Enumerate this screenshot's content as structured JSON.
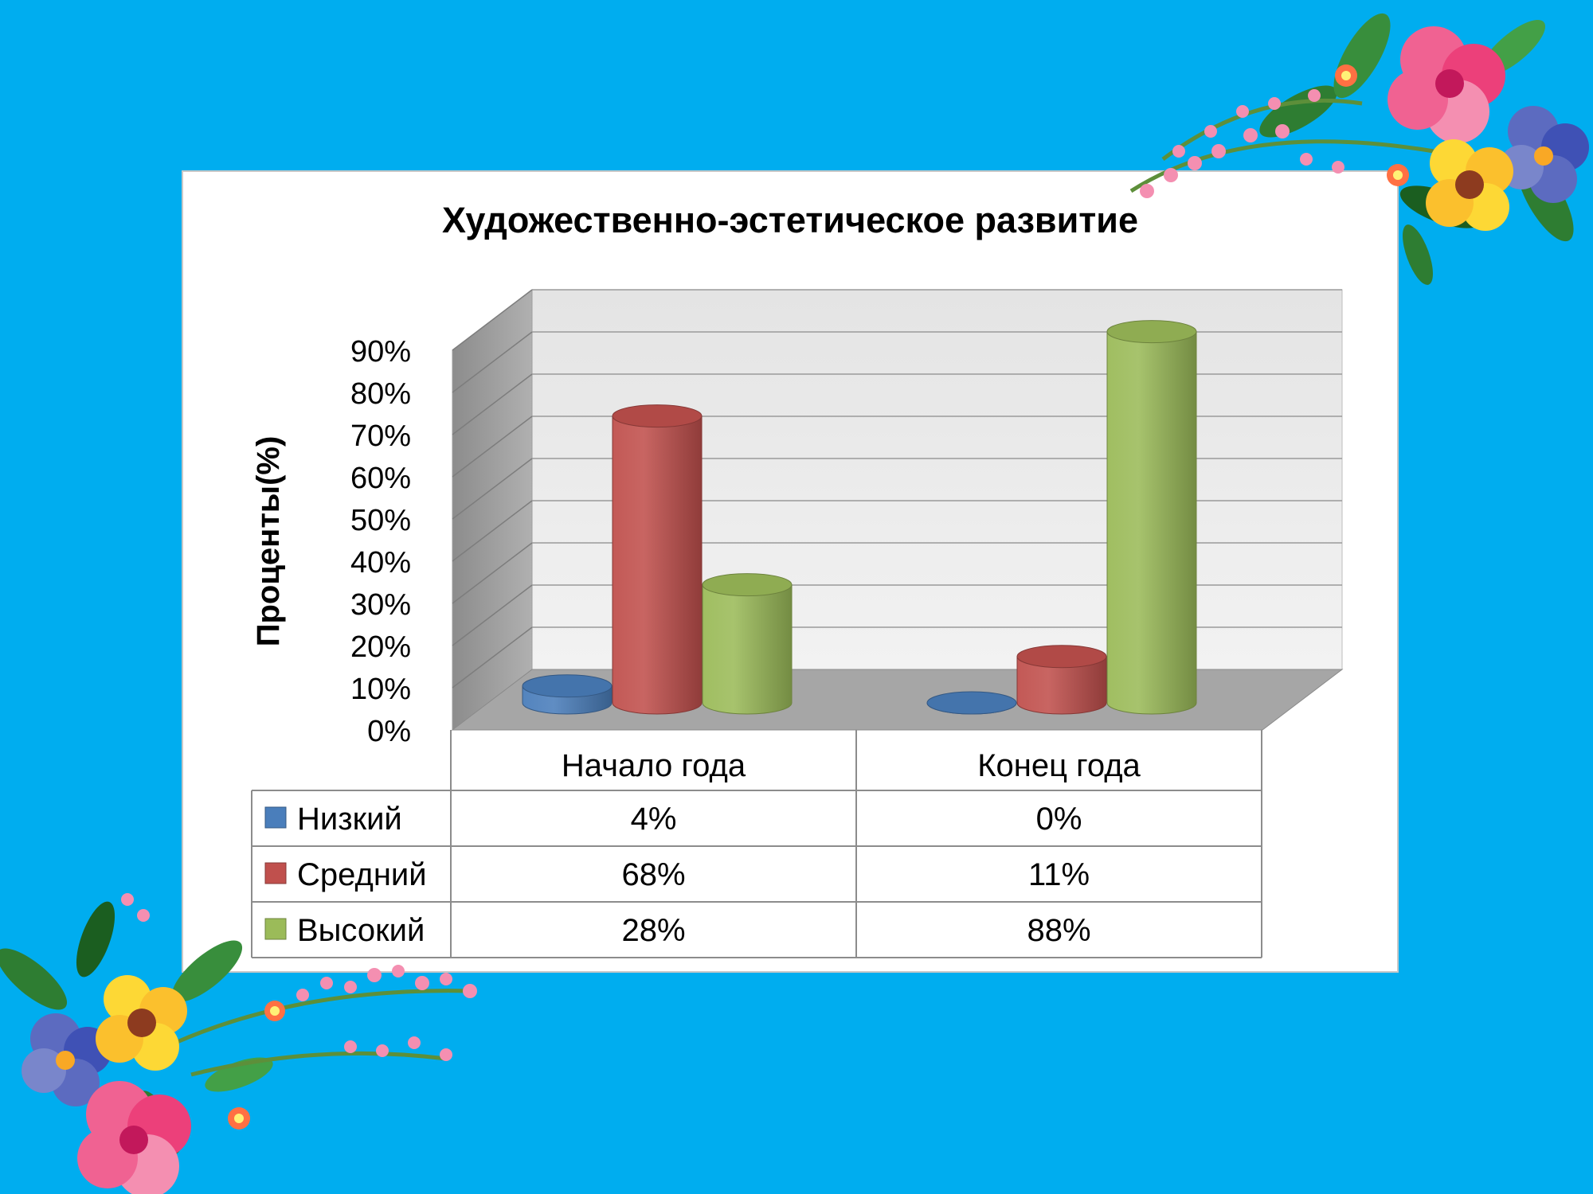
{
  "colors": {
    "background": "#00adef",
    "low": "#4a7ebb",
    "medium": "#c0504d",
    "high": "#9bbb59"
  },
  "decorations": [
    "flower-garland-top-right",
    "flower-garland-bottom-left"
  ],
  "chart_data": {
    "type": "bar",
    "style": "3d-cylinder",
    "title": "Художественно-эстетическое развитие",
    "ylabel": "Проценты(%)",
    "xlabel": "",
    "ylim": [
      0,
      0.9
    ],
    "yticks": [
      "0%",
      "10%",
      "20%",
      "30%",
      "40%",
      "50%",
      "60%",
      "70%",
      "80%",
      "90%"
    ],
    "categories": [
      "Начало года",
      "Конец года"
    ],
    "series": [
      {
        "name": "Низкий",
        "values": [
          0.04,
          0.0
        ],
        "labels": [
          "4%",
          "0%"
        ],
        "color": "#4a7ebb"
      },
      {
        "name": "Средний",
        "values": [
          0.68,
          0.11
        ],
        "labels": [
          "68%",
          "11%"
        ],
        "color": "#c0504d"
      },
      {
        "name": "Высокий",
        "values": [
          0.28,
          0.88
        ],
        "labels": [
          "28%",
          "88%"
        ],
        "color": "#9bbb59"
      }
    ],
    "grid": true,
    "legend": "data-table-below"
  }
}
